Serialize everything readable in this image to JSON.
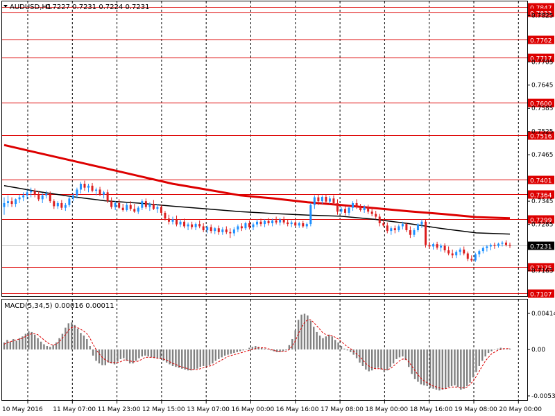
{
  "header": {
    "symbol": "AUDUSD,H1",
    "ohlc": "0.7227 0.7231 0.7224 0.7231"
  },
  "macd_header": "MACD(5,34,5) 0.00016 0.00011",
  "colors": {
    "background": "#ffffff",
    "grid": "#000000",
    "bull": "#1e90ff",
    "bear": "#dc1e1e",
    "level_line": "#dd0000",
    "ma_slow": "#dd0000",
    "ma_fast": "#000000",
    "macd_hist": "#808080",
    "macd_signal": "#dd0000",
    "current_price_bg": "#000000"
  },
  "chart_data": [
    {
      "type": "candlestick",
      "title": "AUDUSD,H1",
      "ylim": [
        0.7107,
        0.7847
      ],
      "price_levels": [
        0.7847,
        0.7833,
        0.7762,
        0.7717,
        0.76,
        0.7516,
        0.7401,
        0.7364,
        0.7299,
        0.7175,
        0.7107
      ],
      "y_ticks": [
        0.7825,
        0.7705,
        0.7645,
        0.7585,
        0.7525,
        0.7465,
        0.7345,
        0.7285,
        0.7225,
        0.7165
      ],
      "current_price": 0.7231,
      "x_tick_labels": [
        "10 May 2016",
        "11 May 07:00",
        "11 May 23:00",
        "12 May 15:00",
        "13 May 07:00",
        "16 May 00:00",
        "16 May 16:00",
        "17 May 08:00",
        "18 May 00:00",
        "18 May 16:00",
        "19 May 08:00",
        "20 May 00:00"
      ],
      "grid": true,
      "ma_slow": [
        0.749,
        0.747,
        0.745,
        0.743,
        0.741,
        0.739,
        0.7375,
        0.736,
        0.7352,
        0.7342,
        0.7335,
        0.7327,
        0.7319,
        0.7312,
        0.7304,
        0.7301
      ],
      "ma_fast": [
        0.7385,
        0.737,
        0.7357,
        0.7346,
        0.734,
        0.7332,
        0.7325,
        0.7318,
        0.7313,
        0.7309,
        0.7306,
        0.7298,
        0.7287,
        0.7274,
        0.7263,
        0.726
      ]
    },
    {
      "type": "bar",
      "title": "MACD(5,34,5) 0.00016 0.00011",
      "ylim": [
        -0.00532,
        0.00414
      ],
      "y_ticks": [
        0.00414,
        0.0,
        -0.00532
      ],
      "y_tick_labels": [
        "0.00414",
        "0.00",
        "-0.00532"
      ],
      "series": [
        {
          "type": "histogram",
          "values": [
            0.0008,
            0.0011,
            0.0009,
            0.0012,
            0.001,
            0.0013,
            0.0015,
            0.0018,
            0.0021,
            0.002,
            0.0017,
            0.0013,
            0.0009,
            0.0006,
            0.0004,
            0.0003,
            0.0005,
            0.0008,
            0.0013,
            0.0018,
            0.0025,
            0.003,
            0.0031,
            0.0028,
            0.0024,
            0.0019,
            0.0016,
            0.0012,
            0.0004,
            -0.0007,
            -0.0013,
            -0.0016,
            -0.0018,
            -0.0018,
            -0.0015,
            -0.0016,
            -0.0017,
            -0.0014,
            -0.0011,
            -0.001,
            -0.0013,
            -0.0016,
            -0.0016,
            -0.0013,
            -0.001,
            -0.0008,
            -0.0007,
            -0.0008,
            -0.0009,
            -0.001,
            -0.001,
            -0.0011,
            -0.0013,
            -0.0015,
            -0.0017,
            -0.0019,
            -0.002,
            -0.0021,
            -0.0022,
            -0.0023,
            -0.0024,
            -0.0024,
            -0.0023,
            -0.0022,
            -0.002,
            -0.0019,
            -0.0019,
            -0.0018,
            -0.0016,
            -0.0013,
            -0.0011,
            -0.0009,
            -0.0007,
            -0.0006,
            -0.0005,
            -0.0004,
            -0.0003,
            -0.0002,
            -0.0001,
            0.0,
            0.0002,
            0.0003,
            0.0004,
            0.0003,
            0.0002,
            0.0001,
            0.0,
            -0.0001,
            -0.0002,
            -0.0003,
            -0.0003,
            -0.0002,
            -0.0001,
            0.0005,
            0.0012,
            0.0022,
            0.0034,
            0.004,
            0.0041,
            0.0039,
            0.0033,
            0.0026,
            0.002,
            0.0016,
            0.0013,
            0.0015,
            0.0017,
            0.0015,
            0.0011,
            0.0008,
            0.0004,
            0.0001,
            -0.0001,
            -0.0003,
            -0.0006,
            -0.001,
            -0.0015,
            -0.0019,
            -0.0023,
            -0.0025,
            -0.0024,
            -0.0022,
            -0.0021,
            -0.0023,
            -0.0026,
            -0.0024,
            -0.002,
            -0.0016,
            -0.0011,
            -0.0009,
            -0.0008,
            -0.0012,
            -0.002,
            -0.0028,
            -0.0034,
            -0.0037,
            -0.004,
            -0.0041,
            -0.0042,
            -0.0044,
            -0.0045,
            -0.0046,
            -0.0047,
            -0.0046,
            -0.0045,
            -0.0043,
            -0.0042,
            -0.0041,
            -0.0043,
            -0.0046,
            -0.0045,
            -0.0042,
            -0.0038,
            -0.0032,
            -0.0026,
            -0.0019,
            -0.0013,
            -0.0008,
            -0.0004,
            -0.0002,
            0.0,
            0.0001,
            0.0002,
            0.0001,
            0.0,
            0.0001
          ]
        },
        {
          "type": "signal",
          "values": [
            0.0006,
            0.0008,
            0.0009,
            0.001,
            0.0011,
            0.0012,
            0.0013,
            0.0015,
            0.0017,
            0.0018,
            0.0018,
            0.0017,
            0.0014,
            0.0011,
            0.0008,
            0.0006,
            0.0005,
            0.0006,
            0.0009,
            0.0013,
            0.0017,
            0.0022,
            0.0025,
            0.0026,
            0.0025,
            0.0023,
            0.0021,
            0.0018,
            0.0013,
            0.0006,
            0.0,
            -0.0005,
            -0.0009,
            -0.0012,
            -0.0014,
            -0.0015,
            -0.0015,
            -0.0015,
            -0.0014,
            -0.0012,
            -0.0012,
            -0.0013,
            -0.0014,
            -0.0014,
            -0.0013,
            -0.0011,
            -0.0009,
            -0.0009,
            -0.0009,
            -0.0009,
            -0.001,
            -0.001,
            -0.0011,
            -0.0012,
            -0.0014,
            -0.0016,
            -0.0017,
            -0.0019,
            -0.002,
            -0.0021,
            -0.0022,
            -0.0023,
            -0.0023,
            -0.0023,
            -0.0022,
            -0.0021,
            -0.002,
            -0.0019,
            -0.0018,
            -0.0016,
            -0.0014,
            -0.0012,
            -0.001,
            -0.0008,
            -0.0007,
            -0.0006,
            -0.0005,
            -0.0004,
            -0.0003,
            -0.0002,
            -0.0001,
            0.0,
            0.0001,
            0.0002,
            0.0002,
            0.0002,
            0.0001,
            0.0,
            -0.0001,
            -0.0002,
            -0.0002,
            -0.0002,
            -0.0002,
            0.0,
            0.0004,
            0.001,
            0.0018,
            0.0025,
            0.0031,
            0.0034,
            0.0034,
            0.0031,
            0.0027,
            0.0023,
            0.0019,
            0.0017,
            0.0016,
            0.0016,
            0.0014,
            0.0012,
            0.0009,
            0.0006,
            0.0003,
            0.0001,
            -0.0002,
            -0.0005,
            -0.0008,
            -0.0012,
            -0.0016,
            -0.0019,
            -0.0021,
            -0.0022,
            -0.0022,
            -0.0022,
            -0.0023,
            -0.0023,
            -0.0022,
            -0.0019,
            -0.0016,
            -0.0013,
            -0.0011,
            -0.0011,
            -0.0014,
            -0.0019,
            -0.0024,
            -0.0029,
            -0.0033,
            -0.0036,
            -0.0038,
            -0.004,
            -0.0042,
            -0.0043,
            -0.0044,
            -0.0045,
            -0.0045,
            -0.0044,
            -0.0043,
            -0.0043,
            -0.0043,
            -0.0044,
            -0.0044,
            -0.0043,
            -0.004,
            -0.0036,
            -0.0031,
            -0.0025,
            -0.0019,
            -0.0013,
            -0.0009,
            -0.0005,
            -0.0003,
            -0.0001,
            0.0,
            0.0001,
            0.0001,
            0.0001
          ]
        }
      ]
    }
  ],
  "candles": [
    [
      0.733,
      0.7355,
      0.731,
      0.734
    ],
    [
      0.734,
      0.736,
      0.733,
      0.7345
    ],
    [
      0.7345,
      0.7355,
      0.733,
      0.7338
    ],
    [
      0.7338,
      0.7352,
      0.733,
      0.735
    ],
    [
      0.735,
      0.7362,
      0.734,
      0.7355
    ],
    [
      0.7355,
      0.7368,
      0.7345,
      0.736
    ],
    [
      0.736,
      0.7375,
      0.735,
      0.7368
    ],
    [
      0.7368,
      0.738,
      0.7355,
      0.7372
    ],
    [
      0.7372,
      0.7378,
      0.7355,
      0.7362
    ],
    [
      0.7362,
      0.737,
      0.7345,
      0.735
    ],
    [
      0.735,
      0.7365,
      0.734,
      0.736
    ],
    [
      0.736,
      0.7372,
      0.7352,
      0.7365
    ],
    [
      0.7365,
      0.737,
      0.734,
      0.7345
    ],
    [
      0.7345,
      0.735,
      0.7325,
      0.7332
    ],
    [
      0.7332,
      0.7345,
      0.7325,
      0.734
    ],
    [
      0.734,
      0.7348,
      0.7322,
      0.7328
    ],
    [
      0.7328,
      0.734,
      0.732,
      0.7335
    ],
    [
      0.7335,
      0.7358,
      0.733,
      0.7352
    ],
    [
      0.7352,
      0.7365,
      0.7345,
      0.736
    ],
    [
      0.736,
      0.738,
      0.7352,
      0.7375
    ],
    [
      0.7375,
      0.7395,
      0.7365,
      0.739
    ],
    [
      0.739,
      0.7398,
      0.7372,
      0.738
    ],
    [
      0.738,
      0.739,
      0.7368,
      0.7385
    ],
    [
      0.7385,
      0.7392,
      0.7368,
      0.7372
    ],
    [
      0.7372,
      0.738,
      0.736,
      0.7375
    ],
    [
      0.7375,
      0.7382,
      0.7358,
      0.7362
    ],
    [
      0.7362,
      0.7372,
      0.7352,
      0.7368
    ],
    [
      0.7368,
      0.7375,
      0.734,
      0.7345
    ],
    [
      0.7345,
      0.7355,
      0.7325,
      0.733
    ],
    [
      0.733,
      0.7345,
      0.7322,
      0.734
    ],
    [
      0.734,
      0.735,
      0.7325,
      0.7328
    ],
    [
      0.7328,
      0.7338,
      0.7318,
      0.7322
    ],
    [
      0.7322,
      0.734,
      0.7318,
      0.7335
    ],
    [
      0.7335,
      0.7345,
      0.732,
      0.7325
    ],
    [
      0.7325,
      0.7338,
      0.7315,
      0.7318
    ],
    [
      0.7318,
      0.7332,
      0.7312,
      0.7328
    ],
    [
      0.7328,
      0.735,
      0.7322,
      0.7345
    ],
    [
      0.7345,
      0.7352,
      0.7325,
      0.733
    ],
    [
      0.733,
      0.7342,
      0.732,
      0.7338
    ],
    [
      0.7338,
      0.7348,
      0.7322,
      0.7325
    ],
    [
      0.7325,
      0.7338,
      0.7315,
      0.733
    ],
    [
      0.733,
      0.7335,
      0.731,
      0.7315
    ],
    [
      0.7315,
      0.732,
      0.7295,
      0.73
    ],
    [
      0.73,
      0.731,
      0.7285,
      0.7292
    ],
    [
      0.7292,
      0.7305,
      0.7285,
      0.7298
    ],
    [
      0.7298,
      0.7308,
      0.728,
      0.7285
    ],
    [
      0.7285,
      0.7298,
      0.7278,
      0.7292
    ],
    [
      0.7292,
      0.73,
      0.7275,
      0.728
    ],
    [
      0.728,
      0.729,
      0.727,
      0.7285
    ],
    [
      0.7285,
      0.7292,
      0.7272,
      0.7278
    ],
    [
      0.7278,
      0.729,
      0.727,
      0.7286
    ],
    [
      0.7286,
      0.7295,
      0.7275,
      0.728
    ],
    [
      0.728,
      0.7288,
      0.7265,
      0.727
    ],
    [
      0.727,
      0.7282,
      0.7262,
      0.7278
    ],
    [
      0.7278,
      0.7285,
      0.7262,
      0.7268
    ],
    [
      0.7268,
      0.7278,
      0.726,
      0.7275
    ],
    [
      0.7275,
      0.7282,
      0.7258,
      0.7265
    ],
    [
      0.7265,
      0.7278,
      0.7258,
      0.7272
    ],
    [
      0.7272,
      0.728,
      0.726,
      0.7265
    ],
    [
      0.7265,
      0.7275,
      0.725,
      0.7262
    ],
    [
      0.7262,
      0.7278,
      0.7255,
      0.7272
    ],
    [
      0.7272,
      0.7285,
      0.7265,
      0.728
    ],
    [
      0.728,
      0.7288,
      0.7268,
      0.7275
    ],
    [
      0.7275,
      0.7292,
      0.727,
      0.7288
    ],
    [
      0.7288,
      0.7295,
      0.7272,
      0.7278
    ],
    [
      0.7278,
      0.729,
      0.727,
      0.7285
    ],
    [
      0.7285,
      0.7298,
      0.7278,
      0.7292
    ],
    [
      0.7292,
      0.73,
      0.728,
      0.7286
    ],
    [
      0.7286,
      0.7298,
      0.7278,
      0.7294
    ],
    [
      0.7294,
      0.7302,
      0.7282,
      0.7288
    ],
    [
      0.7288,
      0.73,
      0.728,
      0.7295
    ],
    [
      0.7295,
      0.7305,
      0.7285,
      0.729
    ],
    [
      0.729,
      0.7302,
      0.7282,
      0.7298
    ],
    [
      0.7298,
      0.7305,
      0.7285,
      0.729
    ],
    [
      0.729,
      0.7298,
      0.728,
      0.7286
    ],
    [
      0.7286,
      0.7295,
      0.7278,
      0.729
    ],
    [
      0.729,
      0.7296,
      0.7278,
      0.7282
    ],
    [
      0.7282,
      0.7292,
      0.7276,
      0.7288
    ],
    [
      0.7288,
      0.7294,
      0.7276,
      0.728
    ],
    [
      0.728,
      0.729,
      0.7274,
      0.7286
    ],
    [
      0.7286,
      0.734,
      0.728,
      0.7335
    ],
    [
      0.7335,
      0.736,
      0.7325,
      0.7355
    ],
    [
      0.7355,
      0.7362,
      0.7335,
      0.7345
    ],
    [
      0.7345,
      0.736,
      0.7338,
      0.7356
    ],
    [
      0.7356,
      0.7362,
      0.734,
      0.7344
    ],
    [
      0.7344,
      0.7358,
      0.7338,
      0.7352
    ],
    [
      0.7352,
      0.736,
      0.7335,
      0.734
    ],
    [
      0.734,
      0.735,
      0.731,
      0.7318
    ],
    [
      0.7318,
      0.733,
      0.7312,
      0.7325
    ],
    [
      0.7325,
      0.7332,
      0.7308,
      0.7315
    ],
    [
      0.7315,
      0.7332,
      0.7308,
      0.7328
    ],
    [
      0.7328,
      0.7345,
      0.732,
      0.734
    ],
    [
      0.734,
      0.735,
      0.7325,
      0.733
    ],
    [
      0.733,
      0.7338,
      0.7318,
      0.7322
    ],
    [
      0.7322,
      0.7335,
      0.7315,
      0.733
    ],
    [
      0.733,
      0.7336,
      0.7312,
      0.7318
    ],
    [
      0.7318,
      0.7328,
      0.7306,
      0.7312
    ],
    [
      0.7312,
      0.732,
      0.7298,
      0.7305
    ],
    [
      0.7305,
      0.7312,
      0.728,
      0.7288
    ],
    [
      0.7288,
      0.7298,
      0.7278,
      0.7282
    ],
    [
      0.7282,
      0.729,
      0.7262,
      0.7268
    ],
    [
      0.7268,
      0.728,
      0.7258,
      0.7275
    ],
    [
      0.7275,
      0.7282,
      0.7262,
      0.727
    ],
    [
      0.727,
      0.7285,
      0.7265,
      0.728
    ],
    [
      0.728,
      0.7292,
      0.7272,
      0.7286
    ],
    [
      0.7286,
      0.729,
      0.7265,
      0.727
    ],
    [
      0.727,
      0.728,
      0.725,
      0.7258
    ],
    [
      0.7258,
      0.7275,
      0.7252,
      0.727
    ],
    [
      0.727,
      0.7288,
      0.7265,
      0.7285
    ],
    [
      0.7285,
      0.7298,
      0.7276,
      0.7292
    ],
    [
      0.7292,
      0.7298,
      0.7225,
      0.7232
    ],
    [
      0.7232,
      0.724,
      0.7222,
      0.7228
    ],
    [
      0.7228,
      0.7238,
      0.722,
      0.7234
    ],
    [
      0.7234,
      0.724,
      0.722,
      0.7225
    ],
    [
      0.7225,
      0.7235,
      0.7215,
      0.723
    ],
    [
      0.723,
      0.7236,
      0.7212,
      0.7218
    ],
    [
      0.7218,
      0.7228,
      0.7205,
      0.721
    ],
    [
      0.721,
      0.722,
      0.7198,
      0.7205
    ],
    [
      0.7205,
      0.7218,
      0.7198,
      0.7214
    ],
    [
      0.7214,
      0.7225,
      0.7205,
      0.722
    ],
    [
      0.722,
      0.7228,
      0.7205,
      0.721
    ],
    [
      0.721,
      0.7215,
      0.719,
      0.7196
    ],
    [
      0.7196,
      0.7205,
      0.7188,
      0.7192
    ],
    [
      0.7192,
      0.7212,
      0.7188,
      0.7208
    ],
    [
      0.7208,
      0.722,
      0.72,
      0.7216
    ],
    [
      0.7216,
      0.7228,
      0.721,
      0.7224
    ],
    [
      0.7224,
      0.7232,
      0.7215,
      0.7228
    ],
    [
      0.7228,
      0.7236,
      0.7218,
      0.7232
    ],
    [
      0.7232,
      0.7238,
      0.7222,
      0.723
    ],
    [
      0.723,
      0.7238,
      0.7225,
      0.7235
    ],
    [
      0.7235,
      0.7242,
      0.7228,
      0.7238
    ],
    [
      0.7238,
      0.7244,
      0.7228,
      0.7232
    ],
    [
      0.7232,
      0.7238,
      0.7224,
      0.7231
    ]
  ]
}
